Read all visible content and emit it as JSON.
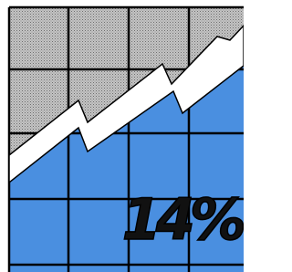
{
  "graphic": {
    "label": "14%"
  }
}
